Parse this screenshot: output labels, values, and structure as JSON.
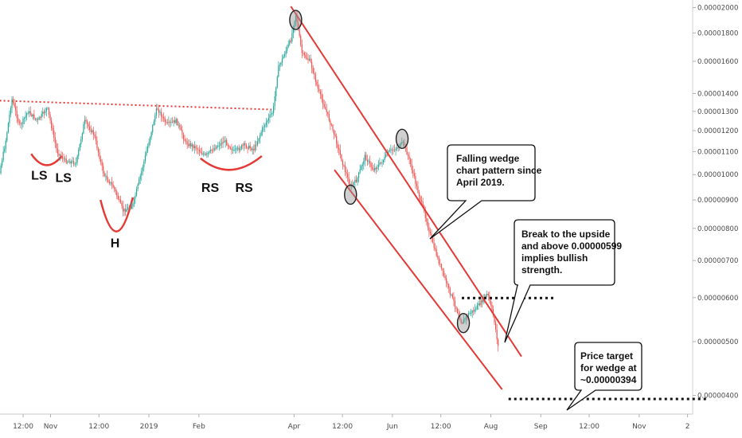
{
  "chart_data": {
    "type": "candlestick",
    "y_axis": {
      "position": "right",
      "min": 3.8e-06,
      "max": 2.01e-05,
      "ticks": [
        "0.00002000",
        "0.00001800",
        "0.00001600",
        "0.00001400",
        "0.00001300",
        "0.00001200",
        "0.00001100",
        "0.00001000",
        "0.00000900",
        "0.00000800",
        "0.00000700",
        "0.00000600",
        "0.00000500",
        "0.00000400"
      ],
      "scale": "log"
    },
    "x_axis": {
      "ticks": [
        {
          "label": "12:00",
          "date": "2018-10-15"
        },
        {
          "label": "Nov",
          "date": "2018-11-01"
        },
        {
          "label": "12:00",
          "date": "2018-12-01"
        },
        {
          "label": "2019",
          "date": "2019-01-01"
        },
        {
          "label": "Feb",
          "date": "2019-02-01"
        },
        {
          "label": "Apr",
          "date": "2019-04-01"
        },
        {
          "label": "12:00",
          "date": "2019-05-01"
        },
        {
          "label": "Jun",
          "date": "2019-06-01"
        },
        {
          "label": "12:00",
          "date": "2019-07-01"
        },
        {
          "label": "Aug",
          "date": "2019-08-01"
        },
        {
          "label": "Sep",
          "date": "2019-09-01"
        },
        {
          "label": "12:00",
          "date": "2019-10-01"
        },
        {
          "label": "Nov",
          "date": "2019-11-01"
        },
        {
          "label": "2",
          "date": "2019-12-01"
        }
      ]
    },
    "price_path": [
      [
        "2018-09-22",
        1.38e-05
      ],
      [
        "2018-09-26",
        1.2e-05
      ],
      [
        "2018-09-30",
        1e-05
      ],
      [
        "2018-10-04",
        1.14e-05
      ],
      [
        "2018-10-08",
        1.37e-05
      ],
      [
        "2018-10-13",
        1.22e-05
      ],
      [
        "2018-10-18",
        1.3e-05
      ],
      [
        "2018-10-24",
        1.25e-05
      ],
      [
        "2018-10-30",
        1.32e-05
      ],
      [
        "2018-11-05",
        1.1e-05
      ],
      [
        "2018-11-10",
        1.06e-05
      ],
      [
        "2018-11-17",
        1.05e-05
      ],
      [
        "2018-11-22",
        1.25e-05
      ],
      [
        "2018-11-28",
        1.18e-05
      ],
      [
        "2018-12-04",
        1e-05
      ],
      [
        "2018-12-10",
        9.5e-06
      ],
      [
        "2018-12-16",
        8.6e-06
      ],
      [
        "2018-12-22",
        8.8e-06
      ],
      [
        "2018-12-28",
        1.03e-05
      ],
      [
        "2019-01-02",
        1.18e-05
      ],
      [
        "2019-01-06",
        1.32e-05
      ],
      [
        "2019-01-12",
        1.23e-05
      ],
      [
        "2019-01-18",
        1.25e-05
      ],
      [
        "2019-01-24",
        1.14e-05
      ],
      [
        "2019-01-30",
        1.12e-05
      ],
      [
        "2019-02-05",
        1.08e-05
      ],
      [
        "2019-02-11",
        1.12e-05
      ],
      [
        "2019-02-17",
        1.15e-05
      ],
      [
        "2019-02-23",
        1.1e-05
      ],
      [
        "2019-03-01",
        1.13e-05
      ],
      [
        "2019-03-07",
        1.11e-05
      ],
      [
        "2019-03-13",
        1.22e-05
      ],
      [
        "2019-03-19",
        1.3e-05
      ],
      [
        "2019-03-22",
        1.55e-05
      ],
      [
        "2019-03-26",
        1.65e-05
      ],
      [
        "2019-03-30",
        1.75e-05
      ],
      [
        "2019-04-02",
        1.95e-05
      ],
      [
        "2019-04-06",
        1.65e-05
      ],
      [
        "2019-04-11",
        1.6e-05
      ],
      [
        "2019-04-16",
        1.42e-05
      ],
      [
        "2019-04-21",
        1.3e-05
      ],
      [
        "2019-04-26",
        1.18e-05
      ],
      [
        "2019-05-01",
        1.05e-05
      ],
      [
        "2019-05-06",
        9.5e-06
      ],
      [
        "2019-05-10",
        9.8e-06
      ],
      [
        "2019-05-15",
        1.08e-05
      ],
      [
        "2019-05-20",
        1.02e-05
      ],
      [
        "2019-05-25",
        1.05e-05
      ],
      [
        "2019-05-30",
        1.1e-05
      ],
      [
        "2019-06-04",
        1.12e-05
      ],
      [
        "2019-06-08",
        1.14e-05
      ],
      [
        "2019-06-12",
        1.05e-05
      ],
      [
        "2019-06-16",
        9.5e-06
      ],
      [
        "2019-06-21",
        8.5e-06
      ],
      [
        "2019-06-26",
        7.5e-06
      ],
      [
        "2019-07-01",
        6.8e-06
      ],
      [
        "2019-07-06",
        6.2e-06
      ],
      [
        "2019-07-10",
        5.8e-06
      ],
      [
        "2019-07-14",
        5.4e-06
      ],
      [
        "2019-07-18",
        5.6e-06
      ],
      [
        "2019-07-22",
        5.7e-06
      ],
      [
        "2019-07-26",
        5.9e-06
      ],
      [
        "2019-07-30",
        6.1e-06
      ],
      [
        "2019-08-03",
        5.5e-06
      ],
      [
        "2019-08-06",
        4.8e-06
      ]
    ],
    "neckline": {
      "color": "#e53935",
      "style": "dotted",
      "from": [
        "2018-09-28",
        1.36e-05
      ],
      "to": [
        "2019-03-18",
        1.31e-05
      ]
    },
    "wedge_lines": [
      {
        "from": [
          "2019-03-30",
          2.01e-05
        ],
        "to": [
          "2019-08-20",
          4.7e-06
        ],
        "color": "#e53935"
      },
      {
        "from": [
          "2019-04-26",
          1.02e-05
        ],
        "to": [
          "2019-08-08",
          4.1e-06
        ],
        "color": "#e53935"
      }
    ],
    "break_level": {
      "value": 5.99e-06,
      "from": "2019-07-14",
      "to": "2019-09-10"
    },
    "target_level": {
      "value": 3.94e-06,
      "from": "2019-08-12",
      "to": "2019-12-13"
    },
    "touch_points": [
      [
        "2019-04-02",
        1.9e-05
      ],
      [
        "2019-06-07",
        1.16e-05
      ],
      [
        "2019-05-06",
        9.2e-06
      ],
      [
        "2019-07-15",
        5.4e-06
      ]
    ],
    "pattern_arcs": [
      {
        "label": "LS",
        "from": [
          "2018-10-20",
          1.09e-05
        ],
        "mid": [
          "2018-10-29",
          1.04e-05
        ],
        "to": [
          "2018-11-08",
          1.08e-05
        ],
        "label_at": [
          "2018-10-25",
          9.8e-06
        ]
      },
      {
        "label": "LS",
        "label_at": [
          "2018-11-09",
          9.7e-06
        ]
      },
      {
        "label": "H",
        "from": [
          "2018-12-02",
          9e-06
        ],
        "mid": [
          "2018-12-12",
          7.9e-06
        ],
        "to": [
          "2018-12-22",
          9.1e-06
        ],
        "label_at": [
          "2018-12-11",
          7.4e-06
        ]
      },
      {
        "label": "RS",
        "from": [
          "2019-02-02",
          1.07e-05
        ],
        "mid": [
          "2019-02-20",
          1.02e-05
        ],
        "to": [
          "2019-03-12",
          1.08e-05
        ],
        "label_at": [
          "2019-02-08",
          9.3e-06
        ]
      },
      {
        "label": "RS",
        "label_at": [
          "2019-03-01",
          9.3e-06
        ]
      }
    ],
    "annotations": [
      {
        "lines": [
          "Falling wedge",
          "chart pattern since",
          "April 2019."
        ]
      },
      {
        "lines": [
          "Break to the upside",
          "and above 0.00000599",
          "implies bullish",
          "strength."
        ]
      },
      {
        "lines": [
          "Price target",
          "for wedge at",
          "~0.00000394"
        ]
      }
    ],
    "colors": {
      "up": "#26a69a",
      "down": "#ef5350",
      "annotation": "#e53935"
    }
  }
}
